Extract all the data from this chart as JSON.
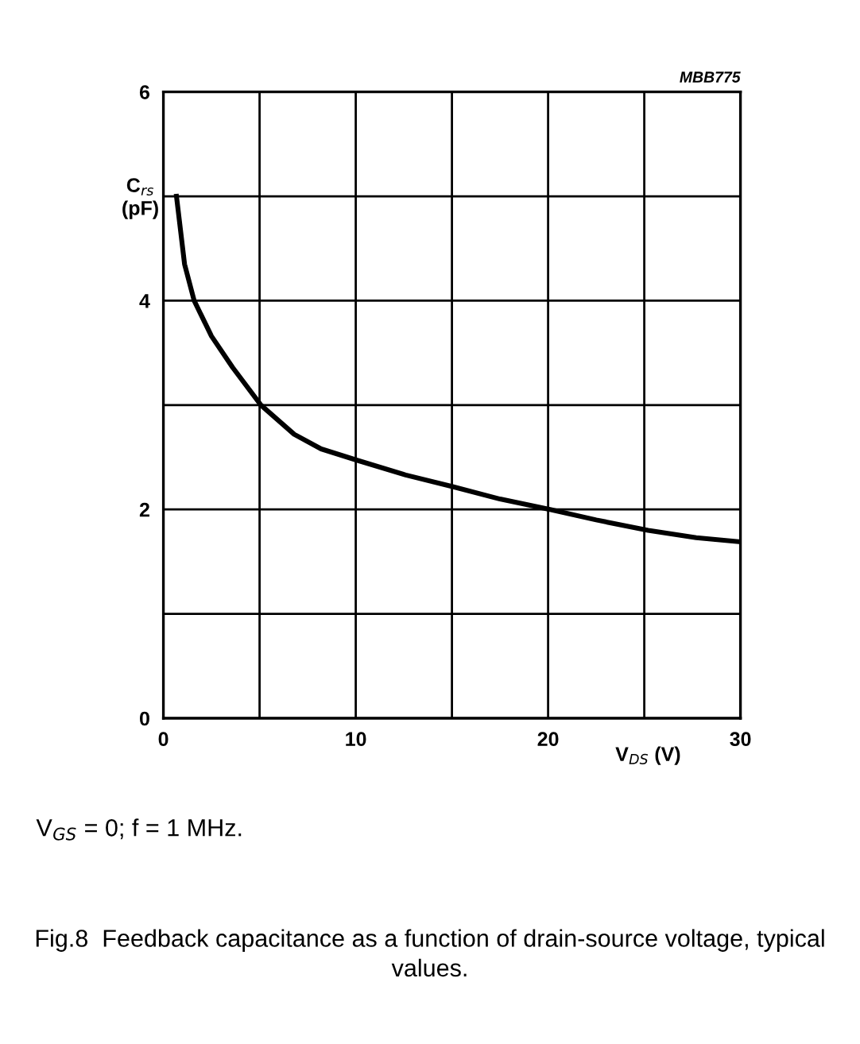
{
  "chart_data": {
    "type": "line",
    "xlabel": "V$_{DS}$ (V)",
    "ylabel": "C$_{rs}$\n(pF)",
    "x": [
      0.68,
      1.1,
      1.6,
      2.5,
      3.6,
      5.07,
      6.8,
      8.2,
      10.1,
      12.6,
      15,
      17.5,
      20.1,
      22.5,
      25.2,
      27.7,
      30
    ],
    "series": [
      {
        "color": "#000000",
        "values": [
          5.0,
          4.35,
          4.0,
          3.66,
          3.36,
          3.0,
          2.72,
          2.58,
          2.47,
          2.33,
          2.22,
          2.1,
          2.0,
          1.9,
          1.8,
          1.73,
          1.69
        ]
      }
    ],
    "xlim": [
      0,
      30
    ],
    "ylim": [
      0,
      6
    ],
    "xticks": [
      0,
      {
        "value": 5,
        "label": null
      },
      10,
      {
        "value": 15,
        "label": null
      },
      20,
      {
        "value": 25,
        "label": null
      },
      30
    ],
    "yticks": [
      0,
      2,
      4,
      6
    ],
    "grid": true,
    "marker": "none",
    "line_style": "solid",
    "legend": false,
    "annotations": [
      "MBB775",
      "V$_{GS}$ = 0; f = 1 MHz.",
      "Fig.8  Feedback capacitance as a function of drain-source voltage, typical values."
    ]
  }
}
